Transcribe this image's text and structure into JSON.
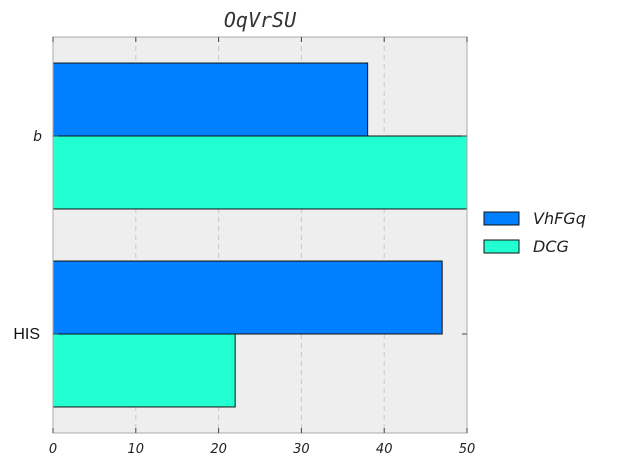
{
  "chart_data": {
    "type": "bar",
    "orientation": "horizontal",
    "title": "OqVrSU",
    "xlabel": "",
    "ylabel": "",
    "categories": [
      "b",
      "HIS"
    ],
    "series": [
      {
        "name": "VhFGq",
        "values": [
          38,
          47
        ],
        "color": "#0080ff"
      },
      {
        "name": "DCG",
        "values": [
          50,
          22
        ],
        "color": "#22ffd0"
      }
    ],
    "xlim": [
      0,
      50
    ],
    "xticks": [
      "0",
      "10",
      "20",
      "30",
      "40",
      "50"
    ],
    "grid": true,
    "legend_position": "right",
    "background": "#eeeeee",
    "gridline_color": "#c8c8c8"
  }
}
